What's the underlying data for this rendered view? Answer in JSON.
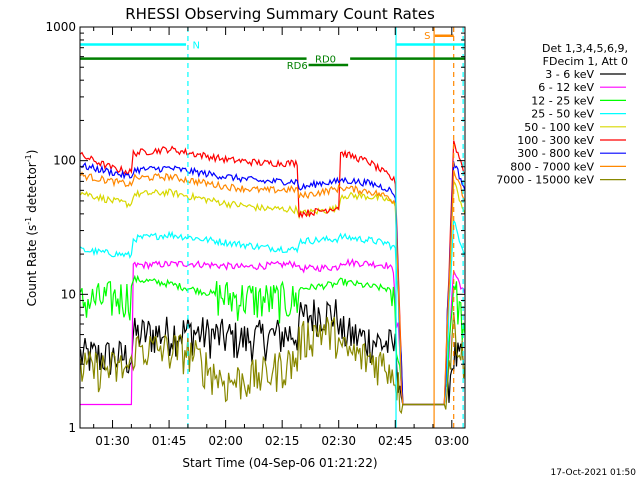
{
  "chart_data": {
    "type": "line",
    "title": "RHESSI Observing Summary Count Rates",
    "xlabel": "Start Time (04-Sep-06 01:21:22)",
    "ylabel_main": "Count Rate (s",
    "ylabel_sup1": "-1",
    "ylabel_mid": " detector",
    "ylabel_sup2": "-1",
    "ylabel_end": ")",
    "y_scale": "log",
    "ylim": [
      1,
      1000
    ],
    "xlim_minutes": [
      81.37,
      183.5
    ],
    "x_ticks": [
      {
        "minute": 90,
        "label": "01:30"
      },
      {
        "minute": 105,
        "label": "01:45"
      },
      {
        "minute": 120,
        "label": "02:00"
      },
      {
        "minute": 135,
        "label": "02:15"
      },
      {
        "minute": 150,
        "label": "02:30"
      },
      {
        "minute": 165,
        "label": "02:45"
      },
      {
        "minute": 180,
        "label": "03:00"
      }
    ],
    "y_ticks": [
      {
        "value": 1,
        "label": "1"
      },
      {
        "value": 10,
        "label": "10"
      },
      {
        "value": 100,
        "label": "100"
      },
      {
        "value": 1000,
        "label": "1000"
      }
    ],
    "legend": {
      "placement": "right",
      "header1": "Det 1,3,4,5,6,9,",
      "header2": "FDecim 1, Att 0"
    },
    "series": [
      {
        "name": "3 - 6 keV",
        "color": "#000000",
        "x": [
          81.5,
          95,
          95.5,
          110,
          125,
          139,
          139.5,
          145,
          150,
          150.5,
          158,
          163,
          165,
          167,
          172,
          178,
          180.5,
          183.5
        ],
        "y": [
          3.5,
          3.4,
          5.0,
          5.3,
          4.6,
          5.2,
          6.5,
          7.5,
          7.0,
          5.2,
          4.6,
          4.2,
          4.0,
          1.5,
          1.5,
          1.5,
          3.5,
          3.0
        ]
      },
      {
        "name": "6 - 12 keV",
        "color": "#ff00ff",
        "x": [
          81.5,
          95,
          95.5,
          110,
          125,
          139,
          139.5,
          150,
          150.5,
          158,
          163,
          164.5,
          167,
          172,
          178,
          180.5,
          183.5
        ],
        "y": [
          1.5,
          1.5,
          16.5,
          17.0,
          16.0,
          17.0,
          15.5,
          16.0,
          17.5,
          17.0,
          16.5,
          15.0,
          1.5,
          1.5,
          1.5,
          15.0,
          10.0
        ]
      },
      {
        "name": "12 - 25 keV",
        "color": "#00ff00",
        "x": [
          81.5,
          95,
          95.5,
          105,
          120,
          130,
          139,
          139.5,
          150,
          150.5,
          158,
          163,
          164.5,
          167,
          172,
          178,
          180.5,
          183.5
        ],
        "y": [
          8.8,
          9.8,
          13.0,
          12.0,
          9.6,
          9.2,
          9.0,
          11.0,
          12.0,
          12.5,
          11.5,
          11.0,
          9.5,
          1.5,
          1.5,
          1.5,
          12.0,
          5.0
        ]
      },
      {
        "name": "25 - 50 keV",
        "color": "#00ffff",
        "x": [
          81.5,
          95,
          95.5,
          105,
          120,
          130,
          139,
          139.5,
          150,
          150.5,
          158,
          163,
          165,
          167,
          172,
          178,
          180.5,
          183.5
        ],
        "y": [
          21.5,
          19.5,
          26.0,
          28.0,
          24.5,
          22.5,
          21.5,
          25.0,
          26.0,
          27.0,
          25.5,
          24.0,
          22.0,
          1.5,
          1.5,
          1.5,
          35.0,
          20.0
        ]
      },
      {
        "name": "50 - 100 keV",
        "color": "#d8d800",
        "x": [
          81.5,
          90,
          95,
          95.5,
          105,
          120,
          130,
          139,
          139.5,
          145,
          150,
          150.5,
          158,
          163,
          165,
          167,
          172,
          178,
          180.5,
          183.5
        ],
        "y": [
          58,
          50,
          47,
          56,
          58,
          48,
          44,
          43,
          40,
          42,
          44,
          55,
          54,
          51,
          46,
          1.5,
          1.5,
          1.5,
          70,
          40
        ]
      },
      {
        "name": "100 - 300 keV",
        "color": "#ff0000",
        "x": [
          81.5,
          90,
          95,
          95.5,
          105,
          120,
          130,
          139,
          139.5,
          145,
          150,
          150.5,
          158,
          163,
          165,
          167,
          172,
          178,
          180.5,
          183.5
        ],
        "y": [
          110,
          88,
          82,
          114,
          122,
          102,
          96,
          96,
          40,
          42,
          45,
          115,
          98,
          78,
          70,
          1.5,
          1.5,
          1.5,
          140,
          80
        ]
      },
      {
        "name": "300 - 800 keV",
        "color": "#0000ff",
        "x": [
          81.5,
          90,
          95,
          95.5,
          105,
          120,
          130,
          139,
          139.5,
          145,
          150,
          150.5,
          158,
          163,
          165,
          167,
          172,
          178,
          180.5,
          183.5
        ],
        "y": [
          92,
          82,
          75,
          85,
          88,
          76,
          70,
          70,
          62,
          68,
          70,
          72,
          68,
          62,
          55,
          1.5,
          1.5,
          1.5,
          100,
          60
        ]
      },
      {
        "name": "800 - 7000 keV",
        "color": "#ff8800",
        "x": [
          81.5,
          90,
          95,
          95.5,
          105,
          120,
          130,
          139,
          139.5,
          145,
          150,
          150.5,
          158,
          163,
          165,
          167,
          172,
          178,
          180.5,
          183.5
        ],
        "y": [
          78,
          70,
          66,
          74,
          76,
          64,
          60,
          61,
          54,
          58,
          62,
          63,
          59,
          54,
          49,
          1.5,
          1.5,
          1.5,
          85,
          50
        ]
      },
      {
        "name": "7000 - 15000 keV",
        "color": "#888800",
        "x": [
          81.5,
          95,
          95.5,
          110,
          120,
          130,
          139,
          139.5,
          145,
          150,
          150.5,
          158,
          163,
          165,
          167,
          172,
          178,
          180.5,
          183.5
        ],
        "y": [
          2.8,
          2.8,
          4.0,
          3.8,
          2.2,
          2.5,
          3.3,
          4.5,
          5.5,
          5.0,
          3.8,
          3.3,
          3.0,
          2.5,
          1.5,
          1.5,
          1.5,
          6.0,
          3.0
        ]
      }
    ],
    "annotations": {
      "night_bars": [
        {
          "label": "N",
          "color": "#00ffff",
          "start": 81.37,
          "end": 109.5,
          "y_level": 740,
          "label_minute": 111.2
        },
        {
          "label": "",
          "color": "#00ffff",
          "start": 165.2,
          "end": 183.5,
          "y_level": 740
        }
      ],
      "saa_bars": [
        {
          "label": "S",
          "color": "#ff8800",
          "start": 175.5,
          "end": 180.5,
          "y_level": 860,
          "label_minute": 173.5
        }
      ],
      "decim_bars": [
        {
          "label": "RD0",
          "color": "#007f00",
          "start": 81.37,
          "end": 183.5,
          "y_level": 580,
          "label_minute": 146.5,
          "gap_start": 142.0,
          "gap_end": 152.5
        },
        {
          "label": "RD6",
          "color": "#007f00",
          "start": 142.0,
          "end": 152.5,
          "y_level": 520,
          "label_minute": 139.0
        }
      ],
      "vertical_lines": [
        {
          "minute": 110.0,
          "color": "#00ffff",
          "style": "dashed"
        },
        {
          "minute": 165.2,
          "color": "#00ffff",
          "style": "solid"
        },
        {
          "minute": 175.3,
          "color": "#ff8800",
          "style": "solid"
        },
        {
          "minute": 183.0,
          "color": "#00ffff",
          "style": "dashed"
        },
        {
          "minute": 180.5,
          "color": "#ff8800",
          "style": "dashed"
        }
      ]
    },
    "footer_timestamp": "17-Oct-2021 01:50"
  }
}
